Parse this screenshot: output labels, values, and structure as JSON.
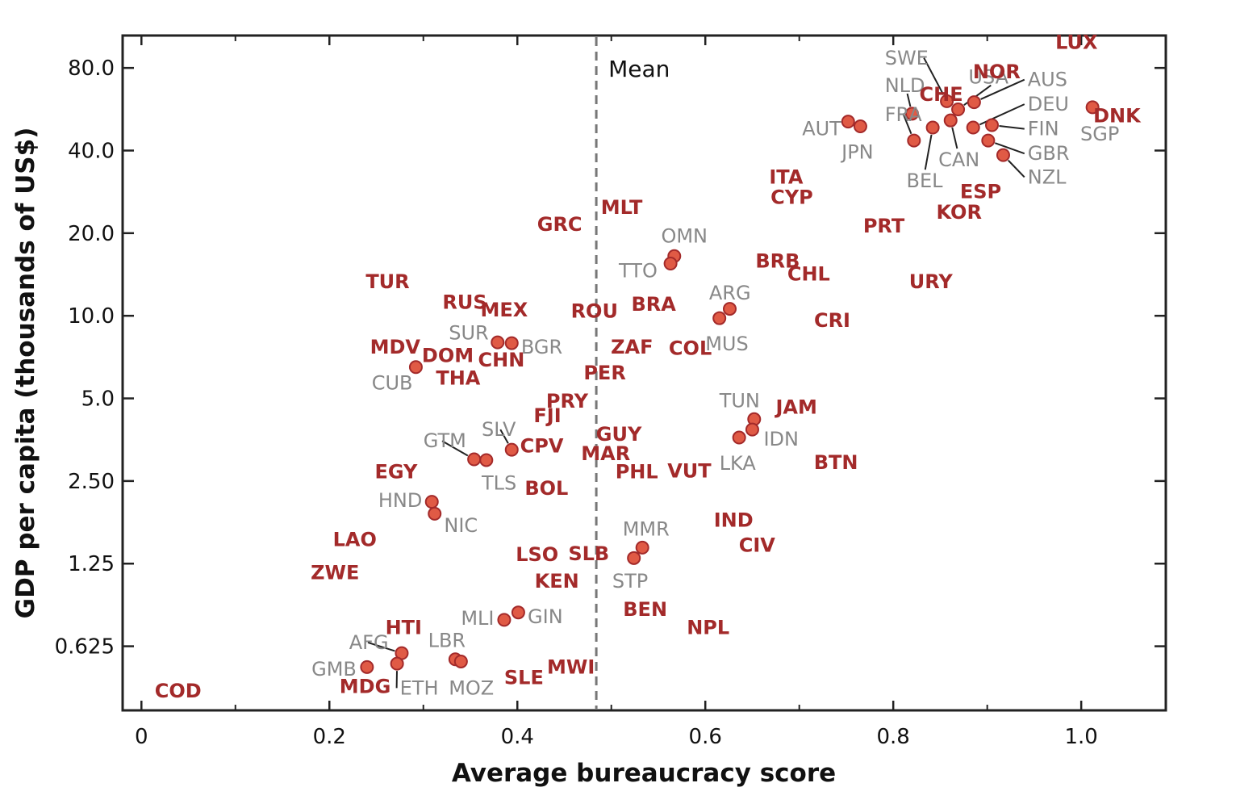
{
  "chart_data": {
    "type": "scatter",
    "xlabel": "Average bureaucracy score",
    "ylabel": "GDP per capita (thousands of US$)",
    "y_scale": "log2",
    "xlim": [
      -0.02,
      1.09
    ],
    "ylim": [
      0.365,
      105
    ],
    "x_ticks": [
      {
        "v": 0,
        "label": "0"
      },
      {
        "v": 0.2,
        "label": "0.2"
      },
      {
        "v": 0.4,
        "label": "0.4"
      },
      {
        "v": 0.6,
        "label": "0.6"
      },
      {
        "v": 0.8,
        "label": "0.8"
      },
      {
        "v": 1.0,
        "label": "1.0"
      }
    ],
    "y_ticks": [
      {
        "v": 0.625,
        "label": "0.625"
      },
      {
        "v": 1.25,
        "label": "1.25"
      },
      {
        "v": 2.5,
        "label": "2.50"
      },
      {
        "v": 5,
        "label": "5.0"
      },
      {
        "v": 10,
        "label": "10.0"
      },
      {
        "v": 20,
        "label": "20.0"
      },
      {
        "v": 40,
        "label": "40.0"
      },
      {
        "v": 80,
        "label": "80.0"
      }
    ],
    "mean": {
      "x": 0.484,
      "label": "Mean"
    },
    "colors": {
      "marker_fill": "#e05a45",
      "marker_stroke": "#a32a2a",
      "label_red": "#a32a2a",
      "label_grey": "#888888",
      "mean_line": "#777777"
    },
    "points": [
      {
        "code": "SWE",
        "x": 0.857,
        "y": 60.5,
        "marker": true,
        "style": "grey",
        "lx": 0.791,
        "ly": 87,
        "anchor": "start",
        "leader": true
      },
      {
        "code": "NLD",
        "x": 0.82,
        "y": 54.5,
        "marker": true,
        "style": "grey",
        "lx": 0.791,
        "ly": 69,
        "anchor": "start",
        "leader": true
      },
      {
        "code": "FRA",
        "x": 0.822,
        "y": 43.5,
        "marker": true,
        "style": "grey",
        "lx": 0.791,
        "ly": 54,
        "anchor": "start",
        "leader": true
      },
      {
        "code": "AUT",
        "x": 0.752,
        "y": 51.0,
        "marker": true,
        "style": "grey",
        "lx": 0.703,
        "ly": 48,
        "anchor": "start",
        "leader": false
      },
      {
        "code": "JPN",
        "x": 0.765,
        "y": 49.0,
        "marker": true,
        "style": "grey",
        "lx": 0.745,
        "ly": 39.5,
        "anchor": "start",
        "leader": false
      },
      {
        "code": "BEL",
        "x": 0.842,
        "y": 48.5,
        "marker": true,
        "style": "grey",
        "lx": 0.814,
        "ly": 31,
        "anchor": "start",
        "leader": true
      },
      {
        "code": "USA",
        "x": 0.869,
        "y": 56.5,
        "marker": true,
        "style": "grey",
        "lx": 0.88,
        "ly": 74,
        "anchor": "start",
        "leader": true
      },
      {
        "code": "CAN",
        "x": 0.861,
        "y": 51.5,
        "marker": true,
        "style": "grey",
        "lx": 0.848,
        "ly": 37,
        "anchor": "start",
        "leader": true
      },
      {
        "code": "AUS",
        "x": 0.886,
        "y": 60.0,
        "marker": true,
        "style": "grey",
        "lx": 0.943,
        "ly": 72.5,
        "anchor": "start",
        "leader": true
      },
      {
        "code": "DEU",
        "x": 0.885,
        "y": 48.5,
        "marker": true,
        "style": "grey",
        "lx": 0.943,
        "ly": 59,
        "anchor": "start",
        "leader": true
      },
      {
        "code": "FIN",
        "x": 0.905,
        "y": 49.5,
        "marker": true,
        "style": "grey",
        "lx": 0.943,
        "ly": 48,
        "anchor": "start",
        "leader": true
      },
      {
        "code": "GBR",
        "x": 0.901,
        "y": 43.5,
        "marker": true,
        "style": "grey",
        "lx": 0.943,
        "ly": 39,
        "anchor": "start",
        "leader": true
      },
      {
        "code": "NZL",
        "x": 0.917,
        "y": 38.5,
        "marker": true,
        "style": "grey",
        "lx": 0.943,
        "ly": 32,
        "anchor": "start",
        "leader": true
      },
      {
        "code": "SGP",
        "x": 1.012,
        "y": 57.5,
        "marker": true,
        "style": "grey",
        "lx": 0.999,
        "ly": 46,
        "anchor": "start",
        "leader": false
      },
      {
        "code": "OMN",
        "x": 0.567,
        "y": 16.5,
        "marker": true,
        "style": "grey",
        "lx": 0.553,
        "ly": 19.5,
        "anchor": "start",
        "leader": false
      },
      {
        "code": "TTO",
        "x": 0.563,
        "y": 15.5,
        "marker": true,
        "style": "grey",
        "lx": 0.508,
        "ly": 14.6,
        "anchor": "start",
        "leader": false
      },
      {
        "code": "ARG",
        "x": 0.626,
        "y": 10.6,
        "marker": true,
        "style": "grey",
        "lx": 0.604,
        "ly": 12.1,
        "anchor": "start",
        "leader": false
      },
      {
        "code": "MUS",
        "x": 0.615,
        "y": 9.8,
        "marker": true,
        "style": "grey",
        "lx": 0.6,
        "ly": 7.9,
        "anchor": "start",
        "leader": false
      },
      {
        "code": "SUR",
        "x": 0.379,
        "y": 8.0,
        "marker": true,
        "style": "grey",
        "lx": 0.327,
        "ly": 8.65,
        "anchor": "start",
        "leader": false
      },
      {
        "code": "BGR",
        "x": 0.394,
        "y": 7.95,
        "marker": true,
        "style": "grey",
        "lx": 0.404,
        "ly": 7.7,
        "anchor": "start",
        "leader": false
      },
      {
        "code": "CUB",
        "x": 0.292,
        "y": 6.5,
        "marker": true,
        "style": "grey",
        "lx": 0.245,
        "ly": 5.68,
        "anchor": "start",
        "leader": false
      },
      {
        "code": "TUN",
        "x": 0.652,
        "y": 4.2,
        "marker": true,
        "style": "grey",
        "lx": 0.615,
        "ly": 4.9,
        "anchor": "start",
        "leader": false
      },
      {
        "code": "IDN",
        "x": 0.65,
        "y": 3.85,
        "marker": true,
        "style": "grey",
        "lx": 0.662,
        "ly": 3.55,
        "anchor": "start",
        "leader": false
      },
      {
        "code": "LKA",
        "x": 0.636,
        "y": 3.6,
        "marker": true,
        "style": "grey",
        "lx": 0.615,
        "ly": 2.9,
        "anchor": "start",
        "leader": false
      },
      {
        "code": "GTM",
        "x": 0.354,
        "y": 3.0,
        "marker": true,
        "style": "grey",
        "lx": 0.3,
        "ly": 3.5,
        "anchor": "start",
        "leader": true
      },
      {
        "code": "SLV",
        "x": 0.394,
        "y": 3.25,
        "marker": true,
        "style": "grey",
        "lx": 0.362,
        "ly": 3.85,
        "anchor": "start",
        "leader": true
      },
      {
        "code": "TLS",
        "x": 0.367,
        "y": 2.98,
        "marker": true,
        "style": "grey",
        "lx": 0.362,
        "ly": 2.46,
        "anchor": "start",
        "leader": false
      },
      {
        "code": "HND",
        "x": 0.309,
        "y": 2.1,
        "marker": true,
        "style": "grey",
        "lx": 0.252,
        "ly": 2.12,
        "anchor": "start",
        "leader": false
      },
      {
        "code": "NIC",
        "x": 0.312,
        "y": 1.9,
        "marker": true,
        "style": "grey",
        "lx": 0.322,
        "ly": 1.72,
        "anchor": "start",
        "leader": false
      },
      {
        "code": "MMR",
        "x": 0.533,
        "y": 1.43,
        "marker": true,
        "style": "grey",
        "lx": 0.512,
        "ly": 1.67,
        "anchor": "start",
        "leader": false
      },
      {
        "code": "STP",
        "x": 0.524,
        "y": 1.31,
        "marker": true,
        "style": "grey",
        "lx": 0.501,
        "ly": 1.08,
        "anchor": "start",
        "leader": false
      },
      {
        "code": "MLI",
        "x": 0.386,
        "y": 0.78,
        "marker": true,
        "style": "grey",
        "lx": 0.34,
        "ly": 0.79,
        "anchor": "start",
        "leader": false
      },
      {
        "code": "GIN",
        "x": 0.401,
        "y": 0.83,
        "marker": true,
        "style": "grey",
        "lx": 0.411,
        "ly": 0.8,
        "anchor": "start",
        "leader": false
      },
      {
        "code": "LBR",
        "x": 0.334,
        "y": 0.56,
        "marker": true,
        "style": "grey",
        "lx": 0.305,
        "ly": 0.655,
        "anchor": "start",
        "leader": false
      },
      {
        "code": "MOZ",
        "x": 0.34,
        "y": 0.55,
        "marker": true,
        "style": "grey",
        "lx": 0.327,
        "ly": 0.44,
        "anchor": "start",
        "leader": false
      },
      {
        "code": "AFG",
        "x": 0.277,
        "y": 0.59,
        "marker": true,
        "style": "grey",
        "lx": 0.221,
        "ly": 0.645,
        "anchor": "start",
        "leader": true
      },
      {
        "code": "ETH",
        "x": 0.272,
        "y": 0.54,
        "marker": true,
        "style": "grey",
        "lx": 0.275,
        "ly": 0.44,
        "anchor": "start",
        "leader": true
      },
      {
        "code": "GMB",
        "x": 0.24,
        "y": 0.525,
        "marker": true,
        "style": "grey",
        "lx": 0.181,
        "ly": 0.516,
        "anchor": "start",
        "leader": false
      },
      {
        "code": "LUX",
        "x": 0.995,
        "y": 99,
        "marker": false,
        "style": "red"
      },
      {
        "code": "NOR",
        "x": 0.91,
        "y": 77.5,
        "marker": false,
        "style": "red"
      },
      {
        "code": "CHE",
        "x": 0.851,
        "y": 64.0,
        "marker": false,
        "style": "red"
      },
      {
        "code": "DNK",
        "x": 1.038,
        "y": 53.5,
        "marker": false,
        "style": "red"
      },
      {
        "code": "ITA",
        "x": 0.686,
        "y": 32.0,
        "marker": false,
        "style": "red"
      },
      {
        "code": "CYP",
        "x": 0.692,
        "y": 27.0,
        "marker": false,
        "style": "red"
      },
      {
        "code": "ESP",
        "x": 0.893,
        "y": 28.3,
        "marker": false,
        "style": "red"
      },
      {
        "code": "KOR",
        "x": 0.87,
        "y": 23.8,
        "marker": false,
        "style": "red"
      },
      {
        "code": "PRT",
        "x": 0.79,
        "y": 21.2,
        "marker": false,
        "style": "red"
      },
      {
        "code": "MLT",
        "x": 0.511,
        "y": 24.8,
        "marker": false,
        "style": "red"
      },
      {
        "code": "GRC",
        "x": 0.445,
        "y": 21.5,
        "marker": false,
        "style": "red"
      },
      {
        "code": "BRB",
        "x": 0.677,
        "y": 15.8,
        "marker": false,
        "style": "red"
      },
      {
        "code": "CHL",
        "x": 0.71,
        "y": 14.2,
        "marker": false,
        "style": "red"
      },
      {
        "code": "URY",
        "x": 0.84,
        "y": 13.3,
        "marker": false,
        "style": "red"
      },
      {
        "code": "TUR",
        "x": 0.262,
        "y": 13.3,
        "marker": false,
        "style": "red"
      },
      {
        "code": "RUS",
        "x": 0.344,
        "y": 11.2,
        "marker": false,
        "style": "red"
      },
      {
        "code": "MEX",
        "x": 0.386,
        "y": 10.5,
        "marker": false,
        "style": "red"
      },
      {
        "code": "ROU",
        "x": 0.482,
        "y": 10.4,
        "marker": false,
        "style": "red"
      },
      {
        "code": "BRA",
        "x": 0.545,
        "y": 11.0,
        "marker": false,
        "style": "red"
      },
      {
        "code": "CRI",
        "x": 0.735,
        "y": 9.6,
        "marker": false,
        "style": "red"
      },
      {
        "code": "MDV",
        "x": 0.27,
        "y": 7.7,
        "marker": false,
        "style": "red"
      },
      {
        "code": "DOM",
        "x": 0.326,
        "y": 7.15,
        "marker": false,
        "style": "red"
      },
      {
        "code": "CHN",
        "x": 0.383,
        "y": 6.9,
        "marker": false,
        "style": "red"
      },
      {
        "code": "THA",
        "x": 0.337,
        "y": 5.92,
        "marker": false,
        "style": "red"
      },
      {
        "code": "ZAF",
        "x": 0.522,
        "y": 7.7,
        "marker": false,
        "style": "red"
      },
      {
        "code": "COL",
        "x": 0.584,
        "y": 7.6,
        "marker": false,
        "style": "red"
      },
      {
        "code": "PER",
        "x": 0.493,
        "y": 6.2,
        "marker": false,
        "style": "red"
      },
      {
        "code": "PRY",
        "x": 0.453,
        "y": 4.88,
        "marker": false,
        "style": "red"
      },
      {
        "code": "FJI",
        "x": 0.432,
        "y": 4.33,
        "marker": false,
        "style": "red"
      },
      {
        "code": "JAM",
        "x": 0.697,
        "y": 4.65,
        "marker": false,
        "style": "red"
      },
      {
        "code": "GUY",
        "x": 0.508,
        "y": 3.7,
        "marker": false,
        "style": "red"
      },
      {
        "code": "CPV",
        "x": 0.426,
        "y": 3.35,
        "marker": false,
        "style": "red"
      },
      {
        "code": "MAR",
        "x": 0.494,
        "y": 3.15,
        "marker": false,
        "style": "red"
      },
      {
        "code": "BTN",
        "x": 0.739,
        "y": 2.92,
        "marker": false,
        "style": "red"
      },
      {
        "code": "PHL",
        "x": 0.527,
        "y": 2.7,
        "marker": false,
        "style": "red"
      },
      {
        "code": "VUT",
        "x": 0.583,
        "y": 2.72,
        "marker": false,
        "style": "red"
      },
      {
        "code": "EGY",
        "x": 0.271,
        "y": 2.7,
        "marker": false,
        "style": "red"
      },
      {
        "code": "BOL",
        "x": 0.431,
        "y": 2.35,
        "marker": false,
        "style": "red"
      },
      {
        "code": "IND",
        "x": 0.63,
        "y": 1.8,
        "marker": false,
        "style": "red"
      },
      {
        "code": "CIV",
        "x": 0.655,
        "y": 1.46,
        "marker": false,
        "style": "red"
      },
      {
        "code": "LAO",
        "x": 0.227,
        "y": 1.53,
        "marker": false,
        "style": "red"
      },
      {
        "code": "ZWE",
        "x": 0.206,
        "y": 1.16,
        "marker": false,
        "style": "red"
      },
      {
        "code": "LSO",
        "x": 0.421,
        "y": 1.35,
        "marker": false,
        "style": "red"
      },
      {
        "code": "SLB",
        "x": 0.476,
        "y": 1.36,
        "marker": false,
        "style": "red"
      },
      {
        "code": "KEN",
        "x": 0.442,
        "y": 1.08,
        "marker": false,
        "style": "red"
      },
      {
        "code": "BEN",
        "x": 0.536,
        "y": 0.85,
        "marker": false,
        "style": "red"
      },
      {
        "code": "NPL",
        "x": 0.603,
        "y": 0.73,
        "marker": false,
        "style": "red"
      },
      {
        "code": "HTI",
        "x": 0.279,
        "y": 0.73,
        "marker": false,
        "style": "red"
      },
      {
        "code": "MWI",
        "x": 0.457,
        "y": 0.525,
        "marker": false,
        "style": "red"
      },
      {
        "code": "SLE",
        "x": 0.407,
        "y": 0.48,
        "marker": false,
        "style": "red"
      },
      {
        "code": "MDG",
        "x": 0.238,
        "y": 0.445,
        "marker": false,
        "style": "red"
      },
      {
        "code": "COD",
        "x": 0.039,
        "y": 0.43,
        "marker": false,
        "style": "red"
      }
    ]
  }
}
